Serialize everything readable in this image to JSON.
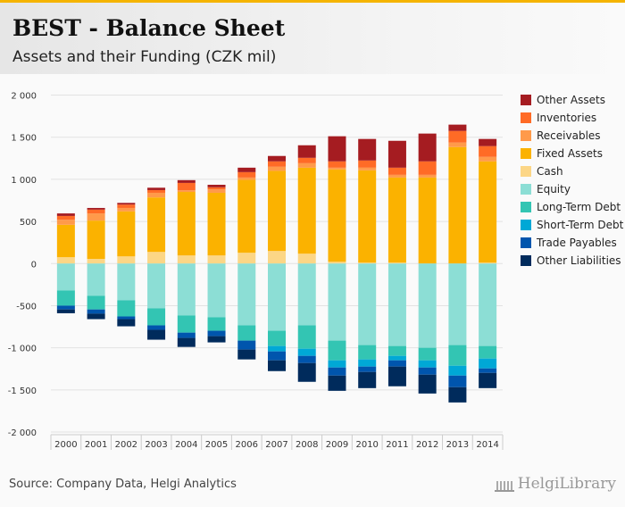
{
  "header": {
    "title": "BEST - Balance Sheet",
    "subtitle": "Assets and their Funding (CZK mil)"
  },
  "footer": {
    "source": "Source: Company Data, Helgi Analytics",
    "logo": "HelgiLibrary"
  },
  "chart_data": {
    "type": "bar",
    "stacked": true,
    "title": "BEST - Balance Sheet",
    "subtitle": "Assets and their Funding (CZK mil)",
    "xlabel": "",
    "ylabel": "",
    "ylim": [
      -2000,
      2000
    ],
    "yticks": [
      2000,
      1500,
      1000,
      500,
      0,
      -500,
      -1000,
      -1500,
      -2000
    ],
    "ytick_labels": [
      "2 000",
      "1 500",
      "1 000",
      "500",
      "0",
      "-500",
      "-1 000",
      "-1 500",
      "-2 000"
    ],
    "grid": true,
    "legend_position": "right",
    "categories": [
      "2000",
      "2001",
      "2002",
      "2003",
      "2004",
      "2005",
      "2006",
      "2007",
      "2008",
      "2009",
      "2010",
      "2011",
      "2012",
      "2013",
      "2014"
    ],
    "series": [
      {
        "name": "Other Assets",
        "color": "#a51c21",
        "values": [
          30,
          20,
          20,
          28,
          33,
          30,
          53,
          64,
          149,
          298,
          256,
          319,
          330,
          75,
          85
        ]
      },
      {
        "name": "Inventories",
        "color": "#ff6b26",
        "values": [
          45,
          45,
          40,
          32,
          87,
          25,
          64,
          64,
          64,
          75,
          85,
          85,
          160,
          138,
          128
        ]
      },
      {
        "name": "Receivables",
        "color": "#ff9a4a",
        "values": [
          60,
          85,
          40,
          55,
          20,
          40,
          28,
          49,
          53,
          21,
          32,
          32,
          32,
          53,
          53
        ]
      },
      {
        "name": "Fixed Assets",
        "color": "#fbb200",
        "values": [
          385,
          455,
          535,
          647,
          754,
          744,
          865,
          951,
          1021,
          1096,
          1095,
          1010,
          1021,
          1383,
          1202
        ]
      },
      {
        "name": "Cash",
        "color": "#fcd686",
        "values": [
          75,
          55,
          85,
          138,
          96,
          96,
          128,
          149,
          117,
          21,
          11,
          11,
          0,
          0,
          11
        ]
      },
      {
        "name": "Equity",
        "color": "#8cded5",
        "values": [
          -320,
          -383,
          -436,
          -532,
          -617,
          -638,
          -734,
          -798,
          -734,
          -915,
          -968,
          -979,
          -1000,
          -968,
          -979
        ]
      },
      {
        "name": "Long-Term Debt",
        "color": "#33c5b3",
        "values": [
          -180,
          -162,
          -192,
          -202,
          -203,
          -160,
          -181,
          -181,
          -277,
          -234,
          -170,
          -117,
          -149,
          -245,
          -149
        ]
      },
      {
        "name": "Short-Term Debt",
        "color": "#00a8d6",
        "values": [
          0,
          0,
          0,
          0,
          0,
          0,
          0,
          -64,
          -85,
          -85,
          -85,
          -53,
          -85,
          -117,
          -117
        ]
      },
      {
        "name": "Trade Payables",
        "color": "#0055ad",
        "values": [
          -45,
          -50,
          -32,
          -53,
          -63,
          -64,
          -106,
          -106,
          -85,
          -96,
          -64,
          -74,
          -85,
          -138,
          -53
        ]
      },
      {
        "name": "Other Liabilities",
        "color": "#002b5c",
        "values": [
          -45,
          -65,
          -85,
          -117,
          -107,
          -74,
          -117,
          -128,
          -223,
          -181,
          -192,
          -234,
          -224,
          -181,
          -181
        ]
      }
    ]
  }
}
